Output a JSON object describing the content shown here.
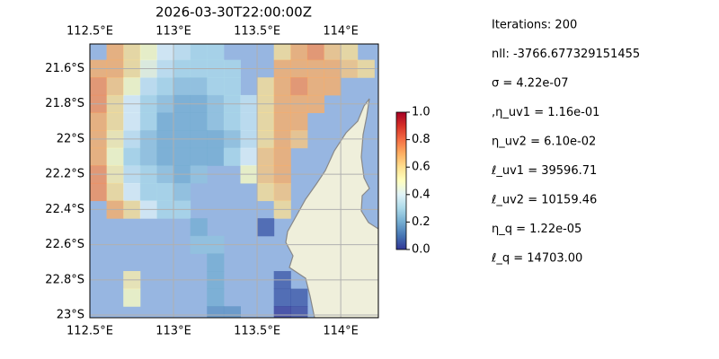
{
  "chart_data": {
    "type": "heatmap",
    "title": "2026-03-30T22:00:00Z",
    "colormap": "RdYlBu_r",
    "grid": true,
    "x": [
      112.55,
      112.65,
      112.75,
      112.85,
      112.95,
      113.05,
      113.15,
      113.25,
      113.35,
      113.45,
      113.55,
      113.65,
      113.75,
      113.85,
      113.95,
      114.05,
      114.15
    ],
    "y": [
      -21.5,
      -21.6,
      -21.7,
      -21.8,
      -21.9,
      -22.0,
      -22.1,
      -22.2,
      -22.3,
      -22.4,
      -22.5,
      -22.6,
      -22.7,
      -22.8,
      -22.9,
      -23.0
    ],
    "values": [
      [
        null,
        0.7,
        0.6,
        0.5,
        0.4,
        0.35,
        0.3,
        0.3,
        null,
        null,
        null,
        0.6,
        0.7,
        0.75,
        0.65,
        0.6,
        null
      ],
      [
        0.7,
        0.7,
        0.6,
        0.45,
        0.35,
        0.3,
        0.3,
        0.3,
        0.3,
        null,
        null,
        0.7,
        0.7,
        0.7,
        0.7,
        0.65,
        0.6
      ],
      [
        0.75,
        0.65,
        0.5,
        0.35,
        0.3,
        0.25,
        0.25,
        0.3,
        0.3,
        null,
        0.6,
        0.7,
        0.75,
        0.7,
        0.7,
        null,
        null
      ],
      [
        0.75,
        0.6,
        0.4,
        0.3,
        0.25,
        0.2,
        0.2,
        0.25,
        0.3,
        0.35,
        0.6,
        0.7,
        0.7,
        0.7,
        null,
        null,
        null
      ],
      [
        0.7,
        0.6,
        0.4,
        0.3,
        0.2,
        0.2,
        0.2,
        0.25,
        0.3,
        0.35,
        0.6,
        0.7,
        0.7,
        null,
        null,
        null,
        null
      ],
      [
        0.7,
        0.55,
        0.35,
        0.25,
        0.2,
        0.2,
        0.2,
        0.2,
        0.25,
        0.35,
        0.6,
        0.7,
        0.65,
        null,
        null,
        null,
        null
      ],
      [
        0.7,
        0.5,
        0.3,
        0.25,
        0.2,
        0.2,
        0.2,
        0.2,
        0.3,
        0.4,
        0.65,
        0.7,
        null,
        null,
        null,
        null,
        null
      ],
      [
        0.75,
        0.55,
        0.35,
        0.3,
        0.25,
        0.2,
        0.25,
        null,
        null,
        0.5,
        0.65,
        0.7,
        null,
        null,
        null,
        null,
        null
      ],
      [
        0.75,
        0.6,
        0.4,
        0.3,
        0.3,
        0.25,
        null,
        null,
        null,
        null,
        0.6,
        0.65,
        null,
        null,
        null,
        null,
        null
      ],
      [
        null,
        0.7,
        0.6,
        0.4,
        0.3,
        0.3,
        null,
        null,
        null,
        null,
        null,
        0.6,
        null,
        null,
        null,
        null,
        null
      ],
      [
        null,
        null,
        null,
        null,
        null,
        null,
        0.2,
        null,
        null,
        null,
        0.05,
        null,
        null,
        null,
        null,
        null,
        null
      ],
      [
        null,
        null,
        null,
        null,
        null,
        null,
        0.25,
        0.25,
        null,
        null,
        null,
        null,
        null,
        null,
        null,
        null,
        null
      ],
      [
        null,
        null,
        null,
        null,
        null,
        null,
        null,
        0.2,
        null,
        null,
        null,
        null,
        null,
        null,
        null,
        null,
        null
      ],
      [
        null,
        null,
        0.55,
        null,
        null,
        null,
        null,
        0.2,
        null,
        null,
        null,
        0.05,
        null,
        null,
        null,
        null,
        null
      ],
      [
        null,
        null,
        0.5,
        null,
        null,
        null,
        null,
        0.2,
        null,
        null,
        null,
        0.05,
        0.05,
        null,
        null,
        null,
        null
      ],
      [
        null,
        null,
        null,
        null,
        null,
        null,
        null,
        0.15,
        0.15,
        null,
        null,
        0.0,
        0.02,
        null,
        null,
        null,
        null
      ]
    ],
    "xlim": [
      112.5,
      114.225
    ],
    "ylim": [
      -23.015,
      -21.46
    ],
    "xticks": [
      {
        "value": 112.5,
        "label": "112.5°E"
      },
      {
        "value": 113,
        "label": "113°E"
      },
      {
        "value": 113.5,
        "label": "113.5°E"
      },
      {
        "value": 114,
        "label": "114°E"
      }
    ],
    "yticks": [
      {
        "value": -21.6,
        "label": "21.6°S"
      },
      {
        "value": -21.8,
        "label": "21.8°S"
      },
      {
        "value": -22,
        "label": "22°S"
      },
      {
        "value": -22.2,
        "label": "22.2°S"
      },
      {
        "value": -22.4,
        "label": "22.4°S"
      },
      {
        "value": -22.6,
        "label": "22.6°S"
      },
      {
        "value": -22.8,
        "label": "22.8°S"
      },
      {
        "value": -23,
        "label": "23°S"
      }
    ],
    "clim": [
      0,
      1
    ],
    "cticks": [
      {
        "value": 0,
        "label": "0.0"
      },
      0.2,
      0.4,
      0.6,
      0.8,
      {
        "value": 1,
        "label": "1.0"
      }
    ],
    "annotations": [
      "Iterations: 200",
      "nll: -3766.677329151455",
      "σ = 4.22e-07",
      ",η_uv1 = 1.16e-01",
      "η_uv2 = 6.10e-02",
      "ℓ_uv1 = 39596.71",
      "ℓ_uv2 = 10159.46",
      "η_q = 1.22e-05",
      "ℓ_q = 14703.00"
    ]
  }
}
